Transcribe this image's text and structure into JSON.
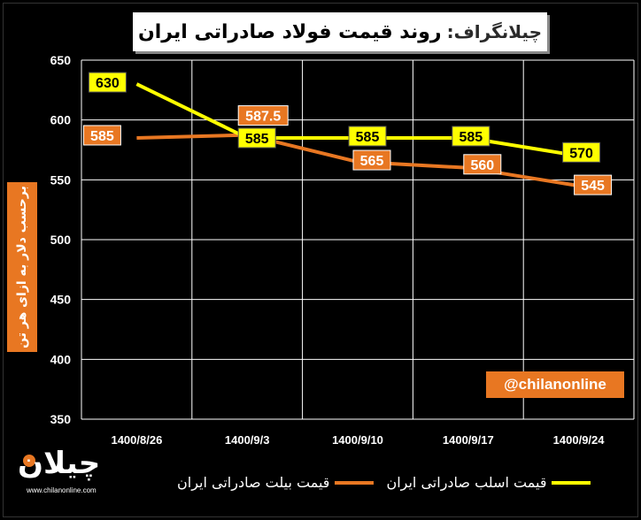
{
  "title": {
    "prefix": "چیلانگراف:",
    "main": "روند قیمت فولاد صادراتی ایران"
  },
  "ylabel": "برحسب دلار به ازای هر تن",
  "watermark": "@chilanonline",
  "logo": {
    "word": "چیلان",
    "site": "www.chilanonline.com"
  },
  "colors": {
    "background": "#000000",
    "yellow_series": "#ffff00",
    "orange_series": "#e87722",
    "grid": "#ffffff"
  },
  "chart_data": {
    "type": "line",
    "categories": [
      "1400/8/26",
      "1400/9/3",
      "1400/9/10",
      "1400/9/17",
      "1400/9/24"
    ],
    "ylim": [
      350,
      650
    ],
    "yticks": [
      350,
      400,
      450,
      500,
      550,
      600,
      650
    ],
    "grid": true,
    "legend_position": "bottom",
    "series": [
      {
        "name": "قیمت اسلب صادراتی ایران",
        "color": "#ffff00",
        "values": [
          630,
          585,
          585,
          585,
          570
        ],
        "labels": [
          "630",
          "585",
          "585",
          "585",
          "570"
        ]
      },
      {
        "name": "قیمت بیلت صادراتی ایران",
        "color": "#e87722",
        "values": [
          585,
          587.5,
          565,
          560,
          545
        ],
        "labels": [
          "585",
          "587.5",
          "565",
          "560",
          "545"
        ]
      }
    ]
  }
}
